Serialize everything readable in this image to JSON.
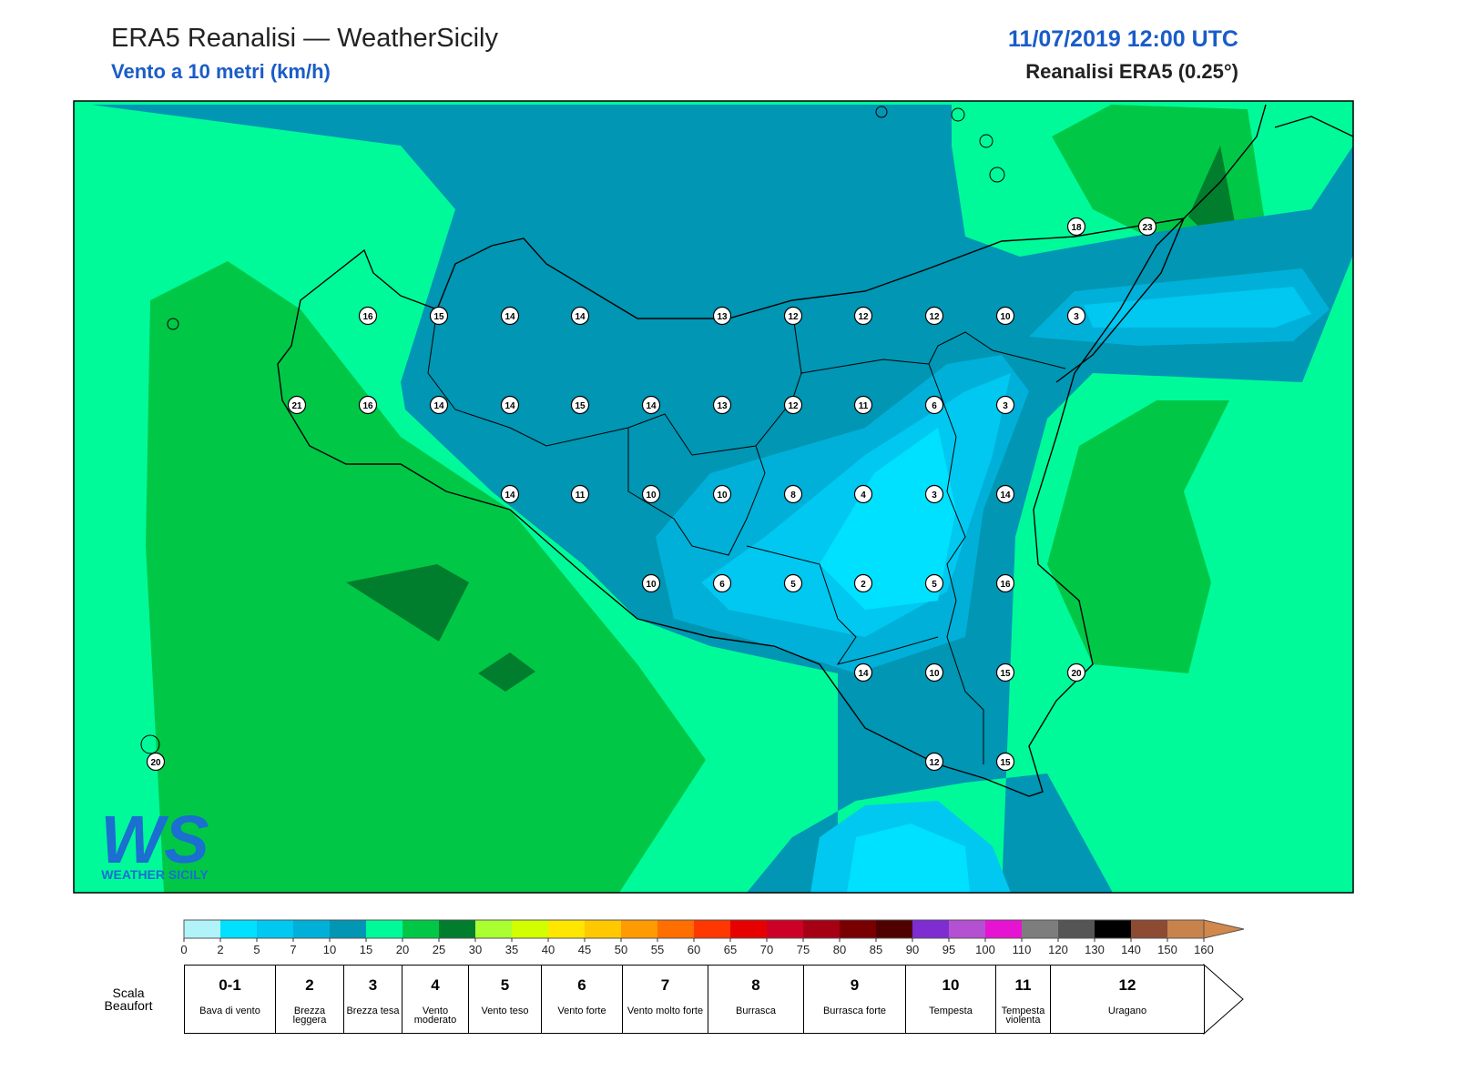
{
  "header": {
    "title": "ERA5 Reanalisi — WeatherSicily",
    "subtitle": "Vento a 10 metri (km/h)",
    "datetime": "11/07/2019 12:00 UTC",
    "source": "Reanalisi ERA5 (0.25°)"
  },
  "stations": [
    16,
    15,
    14,
    14,
    13,
    12,
    12,
    12,
    10,
    3,
    21,
    16,
    14,
    14,
    15,
    14,
    13,
    12,
    11,
    6,
    3,
    14,
    11,
    10,
    10,
    8,
    4,
    3,
    14,
    10,
    6,
    5,
    2,
    5,
    16,
    14,
    10,
    15,
    20,
    12,
    15,
    20,
    18,
    23
  ],
  "logo": {
    "mark": "WS",
    "name": "WEATHER SICILY"
  },
  "colorbar": {
    "ticks": [
      0,
      2,
      5,
      7,
      10,
      15,
      20,
      25,
      30,
      35,
      40,
      45,
      50,
      55,
      60,
      65,
      70,
      75,
      80,
      85,
      90,
      95,
      100,
      110,
      120,
      130,
      140,
      150,
      160
    ],
    "colors": [
      "#b0f4fa",
      "#00e0ff",
      "#00c8f0",
      "#00b0d8",
      "#0096b4",
      "#00fa9a",
      "#00c846",
      "#007d2d",
      "#aaff30",
      "#d2ff00",
      "#ffe600",
      "#ffc800",
      "#ff9b00",
      "#ff6e00",
      "#ff3700",
      "#e60000",
      "#cd0028",
      "#a50014",
      "#780000",
      "#500000",
      "#7d2dd2",
      "#b450d2",
      "#e614d2",
      "#7d7d7d",
      "#555555",
      "#000000",
      "#8c4b32",
      "#c8824b"
    ],
    "over_color": "#d2874b"
  },
  "beaufort": {
    "title": "Scala Beaufort",
    "levels": [
      {
        "force": "0-1",
        "label": "Bava di vento"
      },
      {
        "force": "2",
        "label": "Brezza leggera"
      },
      {
        "force": "3",
        "label": "Brezza tesa"
      },
      {
        "force": "4",
        "label": "Vento moderato"
      },
      {
        "force": "5",
        "label": "Vento teso"
      },
      {
        "force": "6",
        "label": "Vento forte"
      },
      {
        "force": "7",
        "label": "Vento molto forte"
      },
      {
        "force": "8",
        "label": "Burrasca"
      },
      {
        "force": "9",
        "label": "Burrasca forte"
      },
      {
        "force": "10",
        "label": "Tempesta"
      },
      {
        "force": "11",
        "label": "Tempesta violenta"
      },
      {
        "force": "12",
        "label": "Uragano"
      }
    ]
  }
}
